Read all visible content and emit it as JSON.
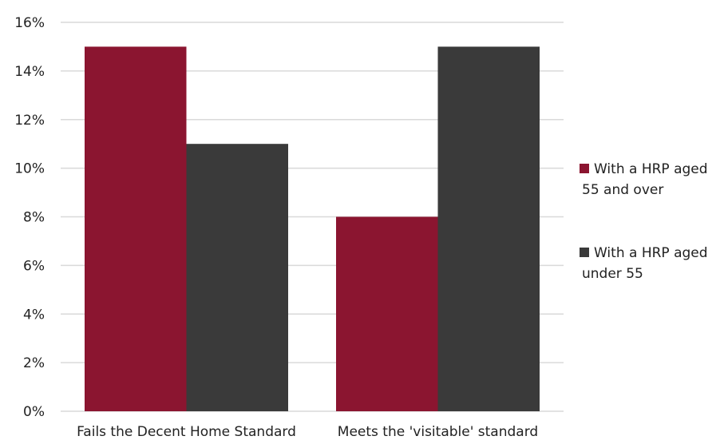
{
  "chart_data": {
    "type": "bar",
    "categories": [
      "Fails the Decent Home Standard",
      "Meets the 'visitable' standard"
    ],
    "series": [
      {
        "name": "With a HRP aged 55 and over",
        "name_lines": [
          "With a HRP aged",
          "55 and over"
        ],
        "values": [
          15,
          8
        ],
        "color": "#8b1530"
      },
      {
        "name": "With a HRP aged under 55",
        "name_lines": [
          "With a HRP aged",
          "under 55"
        ],
        "values": [
          11,
          15
        ],
        "color": "#3a3a3a"
      }
    ],
    "ylim": [
      0,
      16
    ],
    "yticks": [
      0,
      2,
      4,
      6,
      8,
      10,
      12,
      14,
      16
    ],
    "ytick_labels": [
      "0%",
      "2%",
      "4%",
      "6%",
      "8%",
      "10%",
      "12%",
      "14%",
      "16%"
    ],
    "grid": true,
    "legend_position": "right"
  }
}
